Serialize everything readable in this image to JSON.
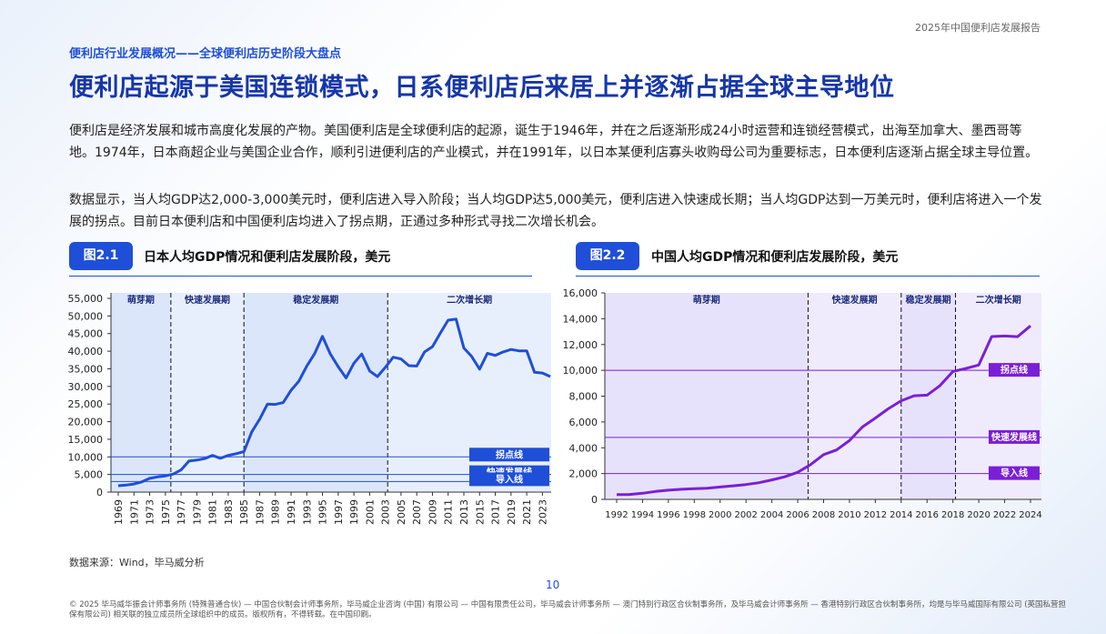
{
  "header": {
    "report": "2025年中国便利店发展报告",
    "section": "便利店行业发展概况——全球便利店历史阶段大盘点",
    "title": "便利店起源于美国连锁模式，日系便利店后来居上并逐渐占据全球主导地位"
  },
  "paragraphs": [
    "便利店是经济发展和城市高度化发展的产物。美国便利店是全球便利店的起源，诞生于1946年，并在之后逐渐形成24小时运营和连锁经营模式，出海至加拿大、墨西哥等地。1974年，日本商超企业与美国企业合作，顺利引进便利店的产业模式，并在1991年，以日本某便利店寡头收购母公司为重要标志，日本便利店逐渐占据全球主导位置。",
    "数据显示，当人均GDP达2,000-3,000美元时，便利店进入导入阶段；当人均GDP达5,000美元，便利店进入快速成长期；当人均GDP达到一万美元时，便利店将进入一个发展的拐点。目前日本便利店和中国便利店均进入了拐点期，正通过多种形式寻找二次增长机会。"
  ],
  "chart_data": [
    {
      "type": "line",
      "figure": "图2.1",
      "title": "日本人均GDP情况和便利店发展阶段，美元",
      "color": "#1f4fd8",
      "x": [
        1969,
        1970,
        1971,
        1972,
        1973,
        1974,
        1975,
        1976,
        1977,
        1978,
        1979,
        1980,
        1981,
        1982,
        1983,
        1984,
        1985,
        1986,
        1987,
        1988,
        1989,
        1990,
        1991,
        1992,
        1993,
        1994,
        1995,
        1996,
        1997,
        1998,
        1999,
        2000,
        2001,
        2002,
        2003,
        2004,
        2005,
        2006,
        2007,
        2008,
        2009,
        2010,
        2011,
        2012,
        2013,
        2014,
        2015,
        2016,
        2017,
        2018,
        2019,
        2020,
        2021,
        2022,
        2023,
        2024
      ],
      "values": [
        1800,
        2000,
        2300,
        2900,
        3900,
        4300,
        4600,
        5100,
        6300,
        8800,
        9100,
        9500,
        10400,
        9600,
        10400,
        10900,
        11500,
        17100,
        20700,
        25000,
        24900,
        25400,
        28900,
        31500,
        35800,
        39300,
        44200,
        39200,
        35600,
        32400,
        36600,
        39200,
        34400,
        32800,
        35400,
        38300,
        37800,
        35900,
        35800,
        39800,
        41300,
        45100,
        48800,
        49100,
        40900,
        38500,
        34900,
        39400,
        38800,
        39800,
        40500,
        40100,
        40100,
        34000,
        33800,
        32800
      ],
      "xlim": [
        1969,
        2024
      ],
      "xticks": [
        1969,
        1971,
        1973,
        1975,
        1977,
        1979,
        1981,
        1983,
        1985,
        1987,
        1989,
        1991,
        1993,
        1995,
        1997,
        1999,
        2001,
        2003,
        2005,
        2007,
        2009,
        2011,
        2013,
        2015,
        2017,
        2019,
        2021,
        2023
      ],
      "ylim": [
        0,
        55000
      ],
      "yticks": [
        0,
        {
          "value": 5000,
          "label": "5,000"
        },
        {
          "value": 10000,
          "label": "10,000"
        },
        {
          "value": 15000,
          "label": "15,000"
        },
        {
          "value": 20000,
          "label": "20,000"
        },
        {
          "value": 25000,
          "label": "25,000"
        },
        {
          "value": 30000,
          "label": "30,000"
        },
        {
          "value": 35000,
          "label": "35,000"
        },
        {
          "value": 40000,
          "label": "40,000"
        },
        {
          "value": 45000,
          "label": "45,000"
        },
        {
          "value": 50000,
          "label": "50,000"
        },
        {
          "value": 55000,
          "label": "55,000"
        }
      ],
      "phases": [
        {
          "name": "萌芽期",
          "start": 1969,
          "end": 1975.7
        },
        {
          "name": "快速发展期",
          "start": 1975.7,
          "end": 1985
        },
        {
          "name": "稳定发展期",
          "start": 1985,
          "end": 2003.3
        },
        {
          "name": "二次增长期",
          "start": 2003.3,
          "end": 2024
        }
      ],
      "ref_lines": [
        {
          "label": "拐点线",
          "value": 10000
        },
        {
          "label": "快速发展线",
          "value": 5000
        },
        {
          "label": "导入线",
          "value": 3000
        }
      ]
    },
    {
      "type": "line",
      "figure": "图2.2",
      "title": "中国人均GDP情况和便利店发展阶段，美元",
      "color": "#7a1fd6",
      "x": [
        1992,
        1993,
        1994,
        1995,
        1996,
        1997,
        1998,
        1999,
        2000,
        2001,
        2002,
        2003,
        2004,
        2005,
        2006,
        2007,
        2008,
        2009,
        2010,
        2011,
        2012,
        2013,
        2014,
        2015,
        2016,
        2017,
        2018,
        2019,
        2020,
        2021,
        2022,
        2023,
        2024
      ],
      "values": [
        370,
        380,
        470,
        610,
        710,
        780,
        830,
        870,
        960,
        1050,
        1150,
        1290,
        1510,
        1750,
        2100,
        2700,
        3470,
        3830,
        4550,
        5610,
        6300,
        7020,
        7640,
        8030,
        8080,
        8820,
        9910,
        10140,
        10410,
        12620,
        12660,
        12610,
        13450
      ],
      "xlim": [
        1992,
        2024
      ],
      "xticks": [
        1992,
        1994,
        1996,
        1998,
        2000,
        2002,
        2004,
        2006,
        2008,
        2010,
        2012,
        2014,
        2016,
        2018,
        2020,
        2022,
        2024
      ],
      "ylim": [
        0,
        16000
      ],
      "yticks": [
        0,
        {
          "value": 2000,
          "label": "2,000"
        },
        {
          "value": 4000,
          "label": "4,000"
        },
        {
          "value": 6000,
          "label": "6,000"
        },
        {
          "value": 8000,
          "label": "8,000"
        },
        {
          "value": 10000,
          "label": "10,000"
        },
        {
          "value": 12000,
          "label": "12,000"
        },
        {
          "value": 14000,
          "label": "14,000"
        },
        {
          "value": 16000,
          "label": "16,000"
        }
      ],
      "phases": [
        {
          "name": "萌芽期",
          "start": 1992,
          "end": 2006.8
        },
        {
          "name": "快速发展期",
          "start": 2006.8,
          "end": 2014
        },
        {
          "name": "稳定发展期",
          "start": 2014,
          "end": 2018.2
        },
        {
          "name": "二次增长期",
          "start": 2018.2,
          "end": 2024
        }
      ],
      "ref_lines": [
        {
          "label": "拐点线",
          "value": 10000
        },
        {
          "label": "快速发展线",
          "value": 4800
        },
        {
          "label": "导入线",
          "value": 2000
        }
      ]
    }
  ],
  "source": "数据来源：Wind，毕马威分析",
  "page_number": "10",
  "footer": "© 2025 毕马威华振会计师事务所 (特殊普通合伙) — 中国合伙制会计师事务所，毕马威企业咨询 (中国) 有限公司 — 中国有限责任公司，毕马威会计师事务所 — 澳门特别行政区合伙制事务所，及毕马威会计师事务所 — 香港特别行政区合伙制事务所，均是与毕马威国际有限公司 (英国私营担保有限公司) 相关联的独立成员所全球组织中的成员。版权所有，不得转载。在中国印刷。"
}
